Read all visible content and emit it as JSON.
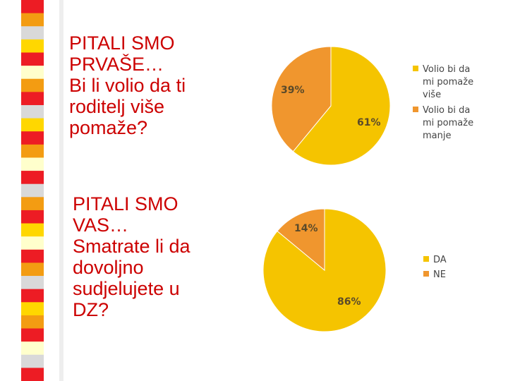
{
  "slide": {
    "question1": {
      "lines": [
        "PITALI SMO",
        "PRVAŠE…",
        "Bi li volio da ti",
        "roditelj više",
        "pomaže?"
      ]
    },
    "question2": {
      "lines": [
        "PITALI SMO",
        "VAS…",
        "Smatrate li da",
        "dovoljno",
        "sudjelujete u",
        "DZ?"
      ]
    }
  },
  "colors": {
    "text": "#cc0000",
    "pie_yellow": "#f5c400",
    "pie_orange": "#f0962e",
    "stripe": [
      "#ed1c24",
      "#f39c12",
      "#d9d9d9",
      "#ffd700",
      "#ffffcc"
    ]
  },
  "chart_data": [
    {
      "type": "pie",
      "title": "",
      "legend_position": "right",
      "slices": [
        {
          "label": "Volio bi da mi pomaže više",
          "legend_lines": [
            "Volio bi da",
            "mi pomaže",
            "više"
          ],
          "value": 61,
          "value_label": "61%",
          "color": "#f5c400"
        },
        {
          "label": "Volio bi da mi pomaže manje",
          "legend_lines": [
            "Volio bi da",
            "mi pomaže",
            "manje"
          ],
          "value": 39,
          "value_label": "39%",
          "color": "#f0962e"
        }
      ]
    },
    {
      "type": "pie",
      "title": "",
      "legend_position": "right",
      "slices": [
        {
          "label": "DA",
          "legend_lines": [
            "DA"
          ],
          "value": 86,
          "value_label": "86%",
          "color": "#f5c400"
        },
        {
          "label": "NE",
          "legend_lines": [
            "NE"
          ],
          "value": 14,
          "value_label": "14%",
          "color": "#f0962e"
        }
      ]
    }
  ]
}
